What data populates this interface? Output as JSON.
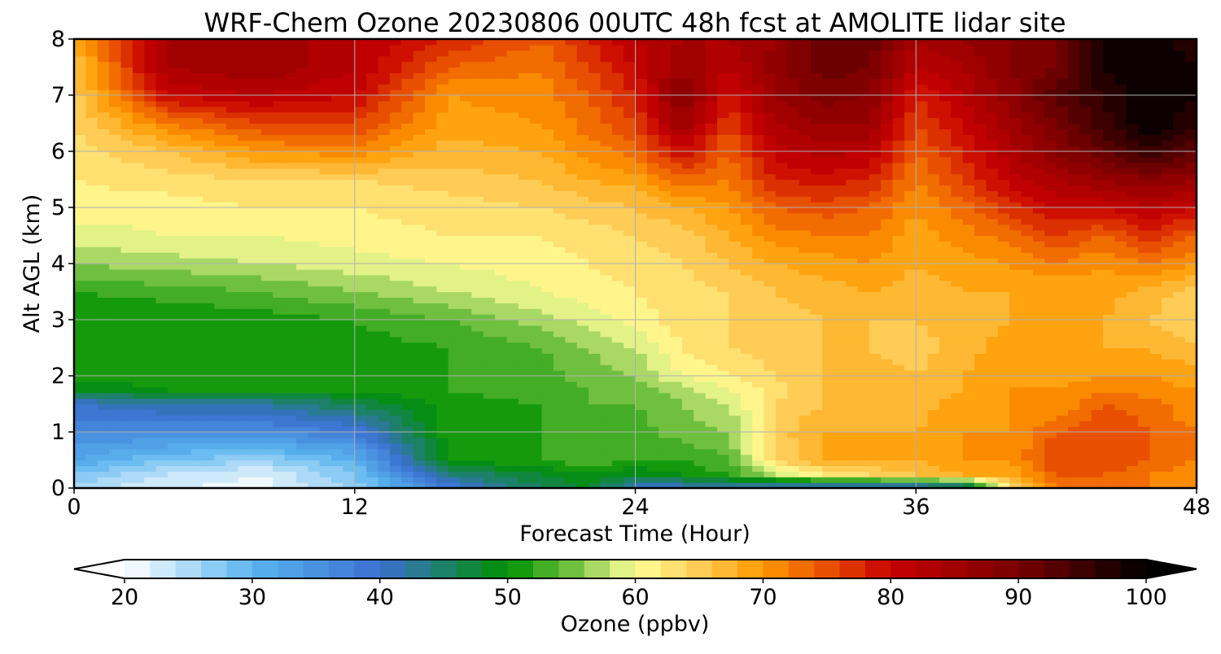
{
  "chart_data": {
    "type": "heatmap",
    "subtype": "filled-contour",
    "title": "WRF-Chem Ozone  20230806 00UTC 48h fcst at AMOLITE lidar site",
    "xlabel": "Forecast Time (Hour)",
    "ylabel": "Alt AGL (km)",
    "xlim": [
      0,
      48
    ],
    "ylim": [
      0,
      8
    ],
    "xticks": [
      0,
      12,
      24,
      36,
      48
    ],
    "yticks": [
      0,
      1,
      2,
      3,
      4,
      5,
      6,
      7,
      8
    ],
    "grid": true,
    "colorbar": {
      "label": "Ozone  (ppbv)",
      "orientation": "horizontal",
      "placement": "bottom",
      "extend": "both",
      "range": [
        20,
        100
      ],
      "step": 2,
      "ticks": [
        20,
        30,
        40,
        50,
        60,
        70,
        80,
        90,
        100
      ],
      "color_stops": [
        {
          "value": 20,
          "color": "#ffffff"
        },
        {
          "value": 30,
          "color": "#5ab4ef"
        },
        {
          "value": 40,
          "color": "#3a70d0"
        },
        {
          "value": 50,
          "color": "#009000"
        },
        {
          "value": 55,
          "color": "#70c040"
        },
        {
          "value": 60,
          "color": "#ffff99"
        },
        {
          "value": 65,
          "color": "#ffcc55"
        },
        {
          "value": 70,
          "color": "#ff9900"
        },
        {
          "value": 75,
          "color": "#e85000"
        },
        {
          "value": 80,
          "color": "#c80000"
        },
        {
          "value": 90,
          "color": "#780000"
        },
        {
          "value": 100,
          "color": "#000000"
        }
      ]
    },
    "x": [
      0,
      4,
      8,
      12,
      16,
      20,
      22,
      24,
      26,
      28,
      30,
      32,
      34,
      36,
      38,
      40,
      42,
      44,
      46,
      48
    ],
    "y": [
      0,
      0.25,
      0.5,
      1,
      1.5,
      1.75,
      2,
      2.5,
      3,
      3.5,
      4,
      4.5,
      5,
      5.5,
      6,
      6.5,
      7,
      7.5,
      8
    ],
    "z": [
      [
        25,
        22,
        21,
        26,
        38,
        46,
        48,
        40,
        40,
        42,
        38,
        38,
        38,
        38,
        40,
        62,
        72,
        72,
        72,
        72
      ],
      [
        28,
        24,
        22,
        28,
        44,
        48,
        50,
        48,
        50,
        52,
        58,
        62,
        64,
        66,
        68,
        68,
        74,
        74,
        72,
        70
      ],
      [
        32,
        28,
        26,
        30,
        50,
        52,
        54,
        52,
        52,
        54,
        64,
        68,
        68,
        68,
        70,
        70,
        76,
        76,
        74,
        72
      ],
      [
        36,
        36,
        36,
        38,
        51,
        52,
        54,
        53,
        55,
        56,
        65,
        68,
        68,
        68,
        70,
        70,
        74,
        76,
        74,
        72
      ],
      [
        40,
        42,
        42,
        46,
        51,
        52,
        54,
        54,
        56,
        58,
        64,
        66,
        68,
        67,
        69,
        70,
        70,
        74,
        73,
        70
      ],
      [
        48,
        50,
        50,
        50,
        52,
        53,
        54,
        55,
        57,
        60,
        63,
        66,
        68,
        66,
        68,
        70,
        70,
        72,
        71,
        70
      ],
      [
        51,
        51,
        51,
        52,
        52,
        53,
        55,
        56,
        60,
        62,
        64,
        66,
        67,
        66,
        68,
        70,
        69,
        70,
        70,
        69
      ],
      [
        50,
        50,
        50,
        51,
        52,
        54,
        56,
        58,
        62,
        64,
        65,
        66,
        66,
        65,
        67,
        69,
        68,
        68,
        68,
        66
      ],
      [
        50,
        50,
        51,
        52,
        54,
        57,
        59,
        61,
        63,
        64,
        65,
        66,
        66,
        66,
        67,
        68,
        68,
        68,
        66,
        64
      ],
      [
        52,
        53,
        54,
        56,
        58,
        60,
        61,
        62,
        63,
        64,
        66,
        67,
        68,
        67,
        68,
        68,
        68,
        69,
        67,
        65
      ],
      [
        56,
        57,
        58,
        59,
        60,
        61,
        62,
        63,
        64,
        66,
        68,
        69,
        70,
        68,
        69,
        70,
        72,
        70,
        72,
        70
      ],
      [
        59,
        60,
        60,
        61,
        62,
        62,
        63,
        64,
        65,
        68,
        71,
        72,
        72,
        69,
        71,
        73,
        76,
        74,
        77,
        74
      ],
      [
        61,
        61,
        62,
        62,
        63,
        64,
        65,
        66,
        68,
        70,
        74,
        75,
        74,
        70,
        73,
        77,
        80,
        80,
        82,
        80
      ],
      [
        62,
        63,
        64,
        64,
        65,
        66,
        68,
        69,
        73,
        72,
        78,
        79,
        78,
        72,
        76,
        81,
        84,
        86,
        88,
        86
      ],
      [
        63,
        66,
        70,
        71,
        67,
        68,
        71,
        73,
        80,
        74,
        81,
        83,
        82,
        74,
        78,
        83,
        88,
        92,
        96,
        92
      ],
      [
        64,
        72,
        76,
        76,
        69,
        70,
        73,
        76,
        86,
        76,
        84,
        86,
        86,
        76,
        80,
        85,
        90,
        95,
        100,
        96
      ],
      [
        65,
        80,
        82,
        80,
        70,
        71,
        74,
        78,
        88,
        79,
        86,
        89,
        88,
        78,
        82,
        87,
        93,
        96,
        100,
        98
      ],
      [
        66,
        84,
        86,
        82,
        74,
        72,
        76,
        80,
        86,
        82,
        87,
        91,
        90,
        82,
        84,
        88,
        90,
        98,
        100,
        98
      ],
      [
        68,
        84,
        86,
        82,
        78,
        74,
        78,
        82,
        84,
        84,
        86,
        92,
        92,
        84,
        86,
        88,
        90,
        98,
        100,
        96
      ]
    ]
  }
}
